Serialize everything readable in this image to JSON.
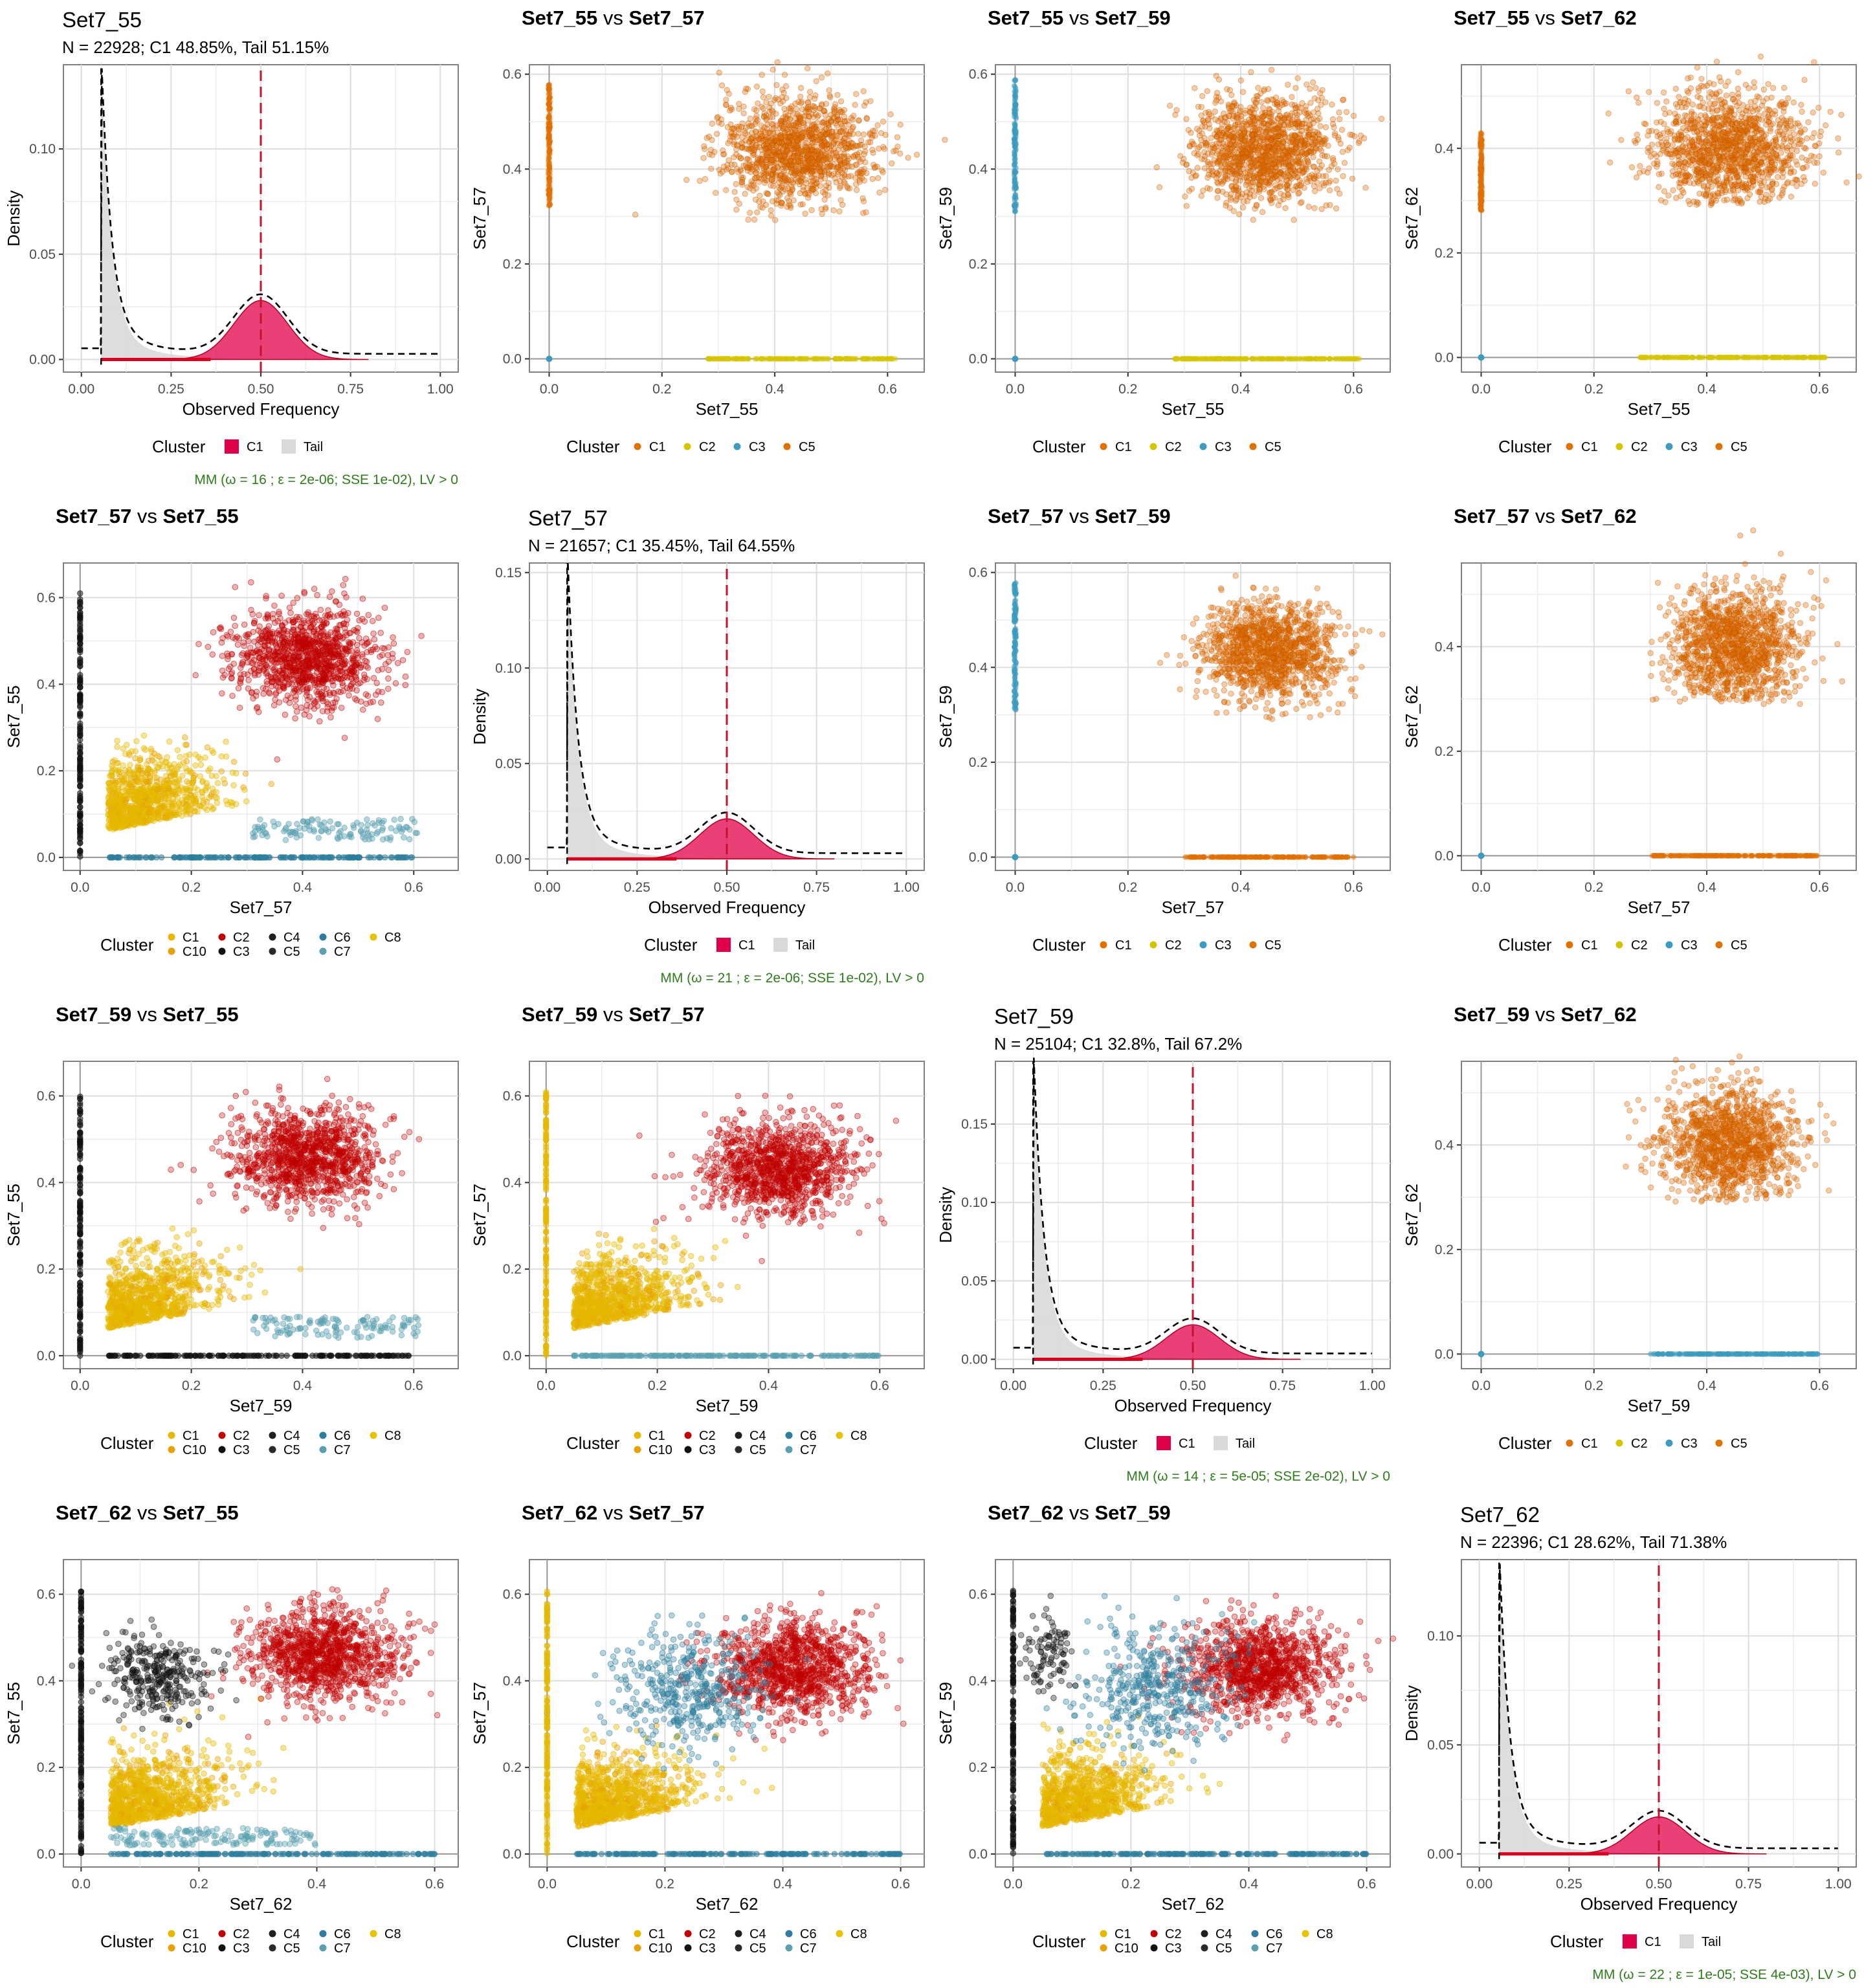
{
  "colors": {
    "C1_cluster": "#e0004a",
    "tail": "#d9d9d9",
    "fit_line": "#000000",
    "mean_line": "#c8102e",
    "note": "#2e7d1a",
    "pal": {
      "C1": "#e6b800",
      "C10": "#e6a000",
      "C2": "#c00000",
      "C3": "#101010",
      "C4": "#202020",
      "C5": "#2a2a2a",
      "C6": "#2e7d9c",
      "C7": "#5aa0b0",
      "C8": "#e6c200"
    },
    "pal4": {
      "C1": "#e07000",
      "C2": "#d6c400",
      "C3": "#3d9bbd",
      "C5": "#e07000"
    }
  },
  "legend_title": "Cluster",
  "legend4": [
    "C1",
    "C2",
    "C3",
    "C5"
  ],
  "legend10": [
    "C1",
    "C2",
    "C4",
    "C6",
    "C8",
    "C10",
    "C3",
    "C5",
    "C7"
  ],
  "legend_hist": [
    "C1",
    "Tail"
  ],
  "panels": [
    {
      "type": "hist",
      "row": 0,
      "col": 0,
      "title": "Set7_55",
      "subtitle": "N = 22928; C1 48.85%, Tail 51.15%",
      "xlabel": "Observed Frequency",
      "ylabel": "Density",
      "yticks": [
        0,
        0.05,
        0.1
      ],
      "ytick_labels": [
        "0.00",
        "0.05",
        "0.10"
      ],
      "ymax": 0.14,
      "peak": 0.133,
      "mean": 0.5,
      "c1_peak": 0.028,
      "note": "MM (ω = 16 ; ε = 2e-06; SSE 1e-02), LV > 0"
    },
    {
      "type": "scatter4",
      "row": 0,
      "col": 1,
      "title_a": "Set7_55",
      "title_b": "Set7_57",
      "xlabel": "Set7_55",
      "ylabel": "Set7_57",
      "blob": {
        "cx": 0.44,
        "cy": 0.44,
        "rx": 0.16,
        "ry": 0.14
      },
      "vert": {
        "lo": 0.31,
        "hi": 0.58,
        "cluster": "C1"
      },
      "horiz": {
        "lo": 0.28,
        "hi": 0.62,
        "cluster": "C2"
      },
      "ymax": 0.62,
      "yticks": [
        0,
        0.2,
        0.4,
        0.6
      ],
      "xticks": [
        0,
        0.2,
        0.4,
        0.6
      ]
    },
    {
      "type": "scatter4",
      "row": 0,
      "col": 2,
      "title_a": "Set7_55",
      "title_b": "Set7_59",
      "xlabel": "Set7_55",
      "ylabel": "Set7_59",
      "blob": {
        "cx": 0.44,
        "cy": 0.44,
        "rx": 0.15,
        "ry": 0.14
      },
      "vert": {
        "lo": 0.31,
        "hi": 0.59,
        "cluster": "C3"
      },
      "horiz": {
        "lo": 0.28,
        "hi": 0.61,
        "cluster": "C2"
      },
      "ymax": 0.62,
      "yticks": [
        0,
        0.2,
        0.4,
        0.6
      ],
      "xticks": [
        0,
        0.2,
        0.4,
        0.6
      ]
    },
    {
      "type": "scatter4",
      "row": 0,
      "col": 3,
      "title_a": "Set7_55",
      "title_b": "Set7_62",
      "xlabel": "Set7_55",
      "ylabel": "Set7_62",
      "blob": {
        "cx": 0.44,
        "cy": 0.4,
        "rx": 0.16,
        "ry": 0.14
      },
      "vert": {
        "lo": 0.28,
        "hi": 0.43,
        "cluster": "C1"
      },
      "horiz": {
        "lo": 0.28,
        "hi": 0.61,
        "cluster": "C2"
      },
      "ymax": 0.56,
      "yticks": [
        0,
        0.2,
        0.4
      ],
      "xticks": [
        0,
        0.2,
        0.4,
        0.6
      ]
    },
    {
      "type": "scatter10",
      "row": 1,
      "col": 0,
      "title_a": "Set7_57",
      "title_b": "Set7_55",
      "xlabel": "Set7_57",
      "ylabel": "Set7_55",
      "variant": "a",
      "ymax": 0.66,
      "xmax": 0.66
    },
    {
      "type": "hist",
      "row": 1,
      "col": 1,
      "title": "Set7_57",
      "subtitle": "N = 21657; C1 35.45%, Tail 64.55%",
      "xlabel": "Observed Frequency",
      "ylabel": "Density",
      "yticks": [
        0,
        0.05,
        0.1,
        0.15
      ],
      "ytick_labels": [
        "0.00",
        "0.05",
        "0.10",
        "0.15"
      ],
      "ymax": 0.155,
      "peak": 0.15,
      "mean": 0.5,
      "c1_peak": 0.021,
      "note": "MM (ω = 21 ; ε = 2e-06; SSE 1e-02), LV > 0"
    },
    {
      "type": "scatter4",
      "row": 1,
      "col": 2,
      "title_a": "Set7_57",
      "title_b": "Set7_59",
      "xlabel": "Set7_57",
      "ylabel": "Set7_59",
      "blob": {
        "cx": 0.45,
        "cy": 0.43,
        "rx": 0.14,
        "ry": 0.13
      },
      "vert": {
        "lo": 0.31,
        "hi": 0.58,
        "cluster": "C3"
      },
      "horiz": {
        "lo": 0.3,
        "hi": 0.6,
        "cluster": "C1"
      },
      "ymax": 0.62,
      "yticks": [
        0,
        0.2,
        0.4,
        0.6
      ],
      "xticks": [
        0,
        0.2,
        0.4,
        0.6
      ]
    },
    {
      "type": "scatter4",
      "row": 1,
      "col": 3,
      "title_a": "Set7_57",
      "title_b": "Set7_62",
      "xlabel": "Set7_57",
      "ylabel": "Set7_62",
      "blob": {
        "cx": 0.45,
        "cy": 0.4,
        "rx": 0.14,
        "ry": 0.14
      },
      "vert": null,
      "horiz": {
        "lo": 0.3,
        "hi": 0.6,
        "cluster": "C1"
      },
      "ymax": 0.56,
      "yticks": [
        0,
        0.2,
        0.4
      ],
      "xticks": [
        0,
        0.2,
        0.4,
        0.6
      ]
    },
    {
      "type": "scatter10",
      "row": 2,
      "col": 0,
      "title_a": "Set7_59",
      "title_b": "Set7_55",
      "xlabel": "Set7_59",
      "ylabel": "Set7_55",
      "variant": "b",
      "ymax": 0.66,
      "xmax": 0.66
    },
    {
      "type": "scatter10",
      "row": 2,
      "col": 1,
      "title_a": "Set7_59",
      "title_b": "Set7_57",
      "xlabel": "Set7_59",
      "ylabel": "Set7_57",
      "variant": "c",
      "ymax": 0.66,
      "xmax": 0.66
    },
    {
      "type": "hist",
      "row": 2,
      "col": 2,
      "title": "Set7_59",
      "subtitle": "N = 25104; C1 32.8%, Tail 67.2%",
      "xlabel": "Observed Frequency",
      "ylabel": "Density",
      "yticks": [
        0,
        0.05,
        0.1,
        0.15
      ],
      "ytick_labels": [
        "0.00",
        "0.05",
        "0.10",
        "0.15"
      ],
      "ymax": 0.19,
      "peak": 0.185,
      "mean": 0.5,
      "c1_peak": 0.022,
      "note": "MM (ω = 14 ; ε = 5e-05; SSE 2e-02), LV > 0"
    },
    {
      "type": "scatter4",
      "row": 2,
      "col": 3,
      "title_a": "Set7_59",
      "title_b": "Set7_62",
      "xlabel": "Set7_59",
      "ylabel": "Set7_62",
      "blob": {
        "cx": 0.44,
        "cy": 0.4,
        "rx": 0.14,
        "ry": 0.14
      },
      "vert": null,
      "horiz": {
        "lo": 0.3,
        "hi": 0.6,
        "cluster": "C3"
      },
      "ymax": 0.56,
      "yticks": [
        0,
        0.2,
        0.4
      ],
      "xticks": [
        0,
        0.2,
        0.4,
        0.6
      ]
    },
    {
      "type": "scatter10",
      "row": 3,
      "col": 0,
      "title_a": "Set7_62",
      "title_b": "Set7_55",
      "xlabel": "Set7_62",
      "ylabel": "Set7_55",
      "variant": "d",
      "ymax": 0.66,
      "xmax": 0.62
    },
    {
      "type": "scatter10",
      "row": 3,
      "col": 1,
      "title_a": "Set7_62",
      "title_b": "Set7_57",
      "xlabel": "Set7_62",
      "ylabel": "Set7_57",
      "variant": "e",
      "ymax": 0.66,
      "xmax": 0.62
    },
    {
      "type": "scatter10",
      "row": 3,
      "col": 2,
      "title_a": "Set7_62",
      "title_b": "Set7_59",
      "xlabel": "Set7_62",
      "ylabel": "Set7_59",
      "variant": "f",
      "ymax": 0.66,
      "xmax": 0.62
    },
    {
      "type": "hist",
      "row": 3,
      "col": 3,
      "title": "Set7_62",
      "subtitle": "N = 22396; C1 28.62%, Tail 71.38%",
      "xlabel": "Observed Frequency",
      "ylabel": "Density",
      "yticks": [
        0,
        0.05,
        0.1
      ],
      "ytick_labels": [
        "0.00",
        "0.05",
        "0.10"
      ],
      "ymax": 0.135,
      "peak": 0.128,
      "mean": 0.5,
      "c1_peak": 0.017,
      "note": "MM (ω = 22 ; ε = 1e-05; SSE 4e-03), LV > 0"
    }
  ],
  "chart_data": [
    {
      "type": "area",
      "title": "Set7_55",
      "subtitle": "N = 22928; C1 48.85%, Tail 51.15%",
      "xlabel": "Observed Frequency",
      "ylabel": "Density",
      "xlim": [
        0,
        1
      ],
      "xticks": [
        "0.00",
        "0.25",
        "0.50",
        "0.75",
        "1.00"
      ],
      "yticks": [
        "0.00",
        "0.05",
        "0.10"
      ],
      "series": [
        {
          "name": "C1",
          "peak_x": 0.5,
          "peak_y": 0.028
        },
        {
          "name": "Tail",
          "peak_x": 0.06,
          "peak_y": 0.133
        }
      ]
    },
    {
      "type": "area",
      "title": "Set7_57",
      "subtitle": "N = 21657; C1 35.45%, Tail 64.55%",
      "xlabel": "Observed Frequency",
      "ylabel": "Density",
      "xlim": [
        0,
        1
      ],
      "xticks": [
        "0.00",
        "0.25",
        "0.50",
        "0.75",
        "1.00"
      ],
      "yticks": [
        "0.00",
        "0.05",
        "0.10",
        "0.15"
      ],
      "series": [
        {
          "name": "C1",
          "peak_x": 0.5,
          "peak_y": 0.021
        },
        {
          "name": "Tail",
          "peak_x": 0.06,
          "peak_y": 0.15
        }
      ]
    },
    {
      "type": "area",
      "title": "Set7_59",
      "subtitle": "N = 25104; C1 32.8%, Tail 67.2%",
      "xlabel": "Observed Frequency",
      "ylabel": "Density",
      "xlim": [
        0,
        1
      ],
      "xticks": [
        "0.00",
        "0.25",
        "0.50",
        "0.75",
        "1.00"
      ],
      "yticks": [
        "0.00",
        "0.05",
        "0.10",
        "0.15"
      ],
      "series": [
        {
          "name": "C1",
          "peak_x": 0.5,
          "peak_y": 0.022
        },
        {
          "name": "Tail",
          "peak_x": 0.06,
          "peak_y": 0.185
        }
      ]
    },
    {
      "type": "area",
      "title": "Set7_62",
      "subtitle": "N = 22396; C1 28.62%, Tail 71.38%",
      "xlabel": "Observed Frequency",
      "ylabel": "Density",
      "xlim": [
        0,
        1
      ],
      "xticks": [
        "0.00",
        "0.25",
        "0.50",
        "0.75",
        "1.00"
      ],
      "yticks": [
        "0.00",
        "0.05",
        "0.10"
      ],
      "series": [
        {
          "name": "C1",
          "peak_x": 0.5,
          "peak_y": 0.017
        },
        {
          "name": "Tail",
          "peak_x": 0.065,
          "peak_y": 0.128
        }
      ]
    },
    {
      "type": "scatter",
      "title": "Set7_55 vs Set7_57",
      "xlabel": "Set7_55",
      "ylabel": "Set7_57",
      "xticks": [
        "0.0",
        "0.2",
        "0.4",
        "0.6"
      ],
      "yticks": [
        "0.0",
        "0.2",
        "0.4",
        "0.6"
      ],
      "series": [
        {
          "name": "C1",
          "center": [
            0.44,
            0.44
          ]
        },
        {
          "name": "C2",
          "x_range": [
            0.28,
            0.62
          ],
          "y": 0
        },
        {
          "name": "C3",
          "center": [
            0,
            0
          ]
        },
        {
          "name": "C5",
          "x": 0,
          "y_range": [
            0.31,
            0.58
          ]
        }
      ]
    },
    {
      "type": "scatter",
      "title": "Set7_57 vs Set7_55",
      "xlabel": "Set7_57",
      "ylabel": "Set7_55",
      "xticks": [
        "0.0",
        "0.2",
        "0.4",
        "0.6"
      ],
      "yticks": [
        "0.0",
        "0.2",
        "0.4",
        "0.6"
      ],
      "series": [
        {
          "name": "C2",
          "center": [
            0.42,
            0.46
          ]
        },
        {
          "name": "C1",
          "center": [
            0.12,
            0.12
          ]
        },
        {
          "name": "C6",
          "center": [
            0.45,
            0.06
          ]
        }
      ]
    }
  ]
}
